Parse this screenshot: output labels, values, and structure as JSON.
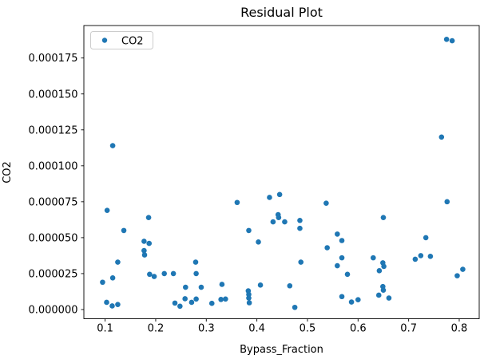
{
  "chart_data": {
    "type": "scatter",
    "title": "Residual Plot",
    "xlabel": "Bypass_Fraction",
    "ylabel": "CO2",
    "legend": {
      "position": "upper-left",
      "entries": [
        "CO2"
      ]
    },
    "marker_color": "#1f77b4",
    "grid": false,
    "xlim": [
      0.058,
      0.8395
    ],
    "ylim": [
      -6.4e-06,
      0.0001976
    ],
    "x_ticks": [
      0.1,
      0.2,
      0.3,
      0.4,
      0.5,
      0.6,
      0.7,
      0.8
    ],
    "x_tick_labels": [
      "0.1",
      "0.2",
      "0.3",
      "0.4",
      "0.5",
      "0.6",
      "0.7",
      "0.8"
    ],
    "y_ticks": [
      0.0,
      2.5e-05,
      5e-05,
      7.5e-05,
      0.0001,
      0.000125,
      0.00015,
      0.000175
    ],
    "y_tick_labels": [
      "0.000000",
      "0.000025",
      "0.000050",
      "0.000075",
      "0.000100",
      "0.000125",
      "0.000150",
      "0.000175"
    ],
    "series": [
      {
        "name": "CO2",
        "points": [
          [
            0.095,
            1.9e-05
          ],
          [
            0.103,
            5e-06
          ],
          [
            0.104,
            6.9e-05
          ],
          [
            0.114,
            2.5e-06
          ],
          [
            0.115,
            2.2e-05
          ],
          [
            0.115,
            0.000114
          ],
          [
            0.125,
            3.5e-06
          ],
          [
            0.125,
            3.3e-05
          ],
          [
            0.137,
            5.5e-05
          ],
          [
            0.177,
            4.75e-05
          ],
          [
            0.177,
            4.1e-05
          ],
          [
            0.178,
            3.8e-05
          ],
          [
            0.186,
            6.4e-05
          ],
          [
            0.187,
            4.6e-05
          ],
          [
            0.188,
            2.45e-05
          ],
          [
            0.197,
            2.3e-05
          ],
          [
            0.217,
            2.5e-05
          ],
          [
            0.235,
            2.5e-05
          ],
          [
            0.238,
            4.5e-06
          ],
          [
            0.248,
            2.3e-06
          ],
          [
            0.258,
            7.5e-06
          ],
          [
            0.259,
            1.55e-05
          ],
          [
            0.271,
            5e-06
          ],
          [
            0.279,
            3.3e-05
          ],
          [
            0.28,
            7.3e-06
          ],
          [
            0.28,
            2.5e-05
          ],
          [
            0.29,
            1.55e-05
          ],
          [
            0.311,
            4.3e-06
          ],
          [
            0.329,
            7e-06
          ],
          [
            0.331,
            1.75e-05
          ],
          [
            0.338,
            7.3e-06
          ],
          [
            0.361,
            7.45e-05
          ],
          [
            0.383,
            1.3e-05
          ],
          [
            0.384,
            1.05e-05
          ],
          [
            0.384,
            8e-06
          ],
          [
            0.384,
            5.5e-05
          ],
          [
            0.385,
            4.7e-06
          ],
          [
            0.403,
            4.7e-05
          ],
          [
            0.407,
            1.7e-05
          ],
          [
            0.425,
            7.8e-05
          ],
          [
            0.432,
            6.1e-05
          ],
          [
            0.442,
            6.6e-05
          ],
          [
            0.443,
            6.4e-05
          ],
          [
            0.445,
            8e-05
          ],
          [
            0.455,
            6.1e-05
          ],
          [
            0.465,
            1.65e-05
          ],
          [
            0.475,
            1.5e-06
          ],
          [
            0.485,
            6.2e-05
          ],
          [
            0.485,
            5.65e-05
          ],
          [
            0.487,
            3.3e-05
          ],
          [
            0.537,
            7.4e-05
          ],
          [
            0.539,
            4.3e-05
          ],
          [
            0.559,
            5.25e-05
          ],
          [
            0.559,
            3.05e-05
          ],
          [
            0.568,
            4.8e-05
          ],
          [
            0.568,
            3.6e-05
          ],
          [
            0.568,
            9e-06
          ],
          [
            0.579,
            2.45e-05
          ],
          [
            0.587,
            5.2e-06
          ],
          [
            0.6,
            6.8e-06
          ],
          [
            0.63,
            3.6e-05
          ],
          [
            0.641,
            1e-05
          ],
          [
            0.642,
            2.7e-05
          ],
          [
            0.649,
            3.25e-05
          ],
          [
            0.649,
            1.6e-05
          ],
          [
            0.65,
            1.35e-05
          ],
          [
            0.65,
            6.4e-05
          ],
          [
            0.651,
            3e-05
          ],
          [
            0.661,
            8e-06
          ],
          [
            0.713,
            3.5e-05
          ],
          [
            0.724,
            3.75e-05
          ],
          [
            0.734,
            5e-05
          ],
          [
            0.743,
            3.7e-05
          ],
          [
            0.765,
            0.00012
          ],
          [
            0.775,
            0.000188
          ],
          [
            0.776,
            7.5e-05
          ],
          [
            0.786,
            0.000187
          ],
          [
            0.796,
            2.35e-05
          ],
          [
            0.807,
            2.8e-05
          ]
        ]
      }
    ]
  }
}
